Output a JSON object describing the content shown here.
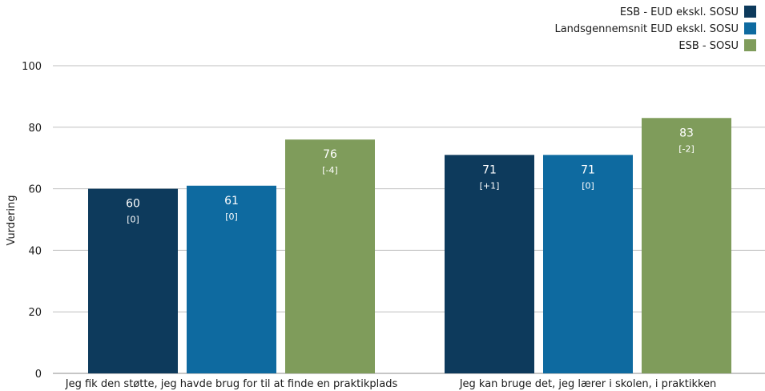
{
  "chart_data": {
    "type": "bar",
    "ylabel": "Vurdering",
    "ylim": [
      0,
      100
    ],
    "yticks": [
      0,
      20,
      40,
      60,
      80,
      100
    ],
    "categories": [
      "Jeg fik den støtte, jeg havde brug for til at finde en praktikplads",
      "Jeg kan bruge det, jeg lærer i skolen, i praktikken"
    ],
    "series": [
      {
        "name": "ESB - EUD ekskl. SOSU",
        "color": "#0d3a5c",
        "values": [
          60,
          71
        ],
        "labels": [
          "60",
          "71"
        ],
        "diffs": [
          "[0]",
          "[+1]"
        ]
      },
      {
        "name": "Landsgennemsnit EUD ekskl. SOSU",
        "color": "#0e6aa0",
        "values": [
          61,
          71
        ],
        "labels": [
          "61",
          "71"
        ],
        "diffs": [
          "[0]",
          "[0]"
        ]
      },
      {
        "name": "ESB - SOSU",
        "color": "#7f9c5b",
        "values": [
          76,
          83
        ],
        "labels": [
          "76",
          "83"
        ],
        "diffs": [
          "[-4]",
          "[-2]"
        ]
      }
    ],
    "grid": true,
    "legend_position": "top-right"
  }
}
